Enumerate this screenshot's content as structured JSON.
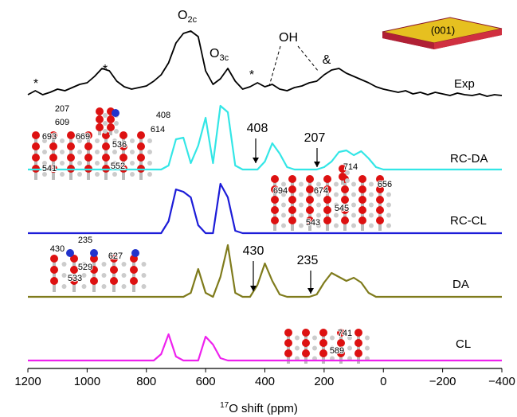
{
  "chart_data": {
    "type": "line",
    "x": [
      1200,
      1175,
      1150,
      1125,
      1100,
      1075,
      1050,
      1025,
      1000,
      975,
      950,
      925,
      900,
      875,
      850,
      825,
      800,
      775,
      750,
      725,
      700,
      675,
      650,
      625,
      600,
      575,
      550,
      525,
      500,
      475,
      450,
      425,
      400,
      375,
      350,
      325,
      300,
      275,
      250,
      225,
      200,
      175,
      150,
      125,
      100,
      75,
      50,
      25,
      0,
      -25,
      -50,
      -75,
      -100,
      -125,
      -150,
      -175,
      -200,
      -225,
      -250,
      -275,
      -300,
      -325,
      -350,
      -375,
      -400
    ],
    "series": [
      {
        "name": "Exp",
        "color": "#000000",
        "values": [
          5,
          10,
          5,
          8,
          12,
          10,
          14,
          18,
          20,
          28,
          38,
          35,
          22,
          15,
          12,
          14,
          16,
          22,
          30,
          45,
          70,
          82,
          85,
          78,
          35,
          18,
          25,
          38,
          22,
          12,
          15,
          20,
          15,
          18,
          12,
          10,
          14,
          16,
          20,
          22,
          30,
          36,
          38,
          32,
          28,
          24,
          20,
          15,
          12,
          10,
          8,
          10,
          6,
          8,
          5,
          8,
          6,
          4,
          7,
          5,
          4,
          6,
          3,
          5,
          4
        ]
      },
      {
        "name": "RC-DA",
        "color": "#33e6e6",
        "values": [
          0,
          0,
          0,
          0,
          0,
          0,
          0,
          0,
          0,
          0,
          0,
          0,
          0,
          0,
          0,
          0,
          0,
          0,
          0,
          5,
          38,
          40,
          8,
          30,
          65,
          8,
          80,
          72,
          5,
          0,
          0,
          0,
          10,
          33,
          20,
          3,
          0,
          0,
          0,
          0,
          3,
          10,
          22,
          24,
          18,
          23,
          14,
          3,
          0,
          0,
          0,
          0,
          0,
          0,
          0,
          0,
          0,
          0,
          0,
          0,
          0,
          0,
          0,
          0,
          0
        ]
      },
      {
        "name": "RC-CL",
        "color": "#1c1cd8",
        "values": [
          0,
          0,
          0,
          0,
          0,
          0,
          0,
          0,
          0,
          0,
          0,
          0,
          0,
          0,
          0,
          0,
          0,
          0,
          0,
          15,
          55,
          52,
          45,
          10,
          0,
          0,
          62,
          45,
          3,
          0,
          0,
          0,
          0,
          0,
          0,
          0,
          0,
          0,
          0,
          0,
          0,
          0,
          0,
          0,
          0,
          0,
          0,
          0,
          0,
          0,
          0,
          0,
          0,
          0,
          0,
          0,
          0,
          0,
          0,
          0,
          0,
          0,
          0,
          0,
          0
        ]
      },
      {
        "name": "DA",
        "color": "#7f7b1c",
        "values": [
          0,
          0,
          0,
          0,
          0,
          0,
          0,
          0,
          0,
          0,
          0,
          0,
          0,
          0,
          0,
          0,
          0,
          0,
          0,
          0,
          0,
          0,
          5,
          35,
          5,
          0,
          25,
          65,
          5,
          0,
          0,
          15,
          42,
          20,
          3,
          0,
          0,
          0,
          0,
          3,
          18,
          30,
          25,
          20,
          24,
          18,
          5,
          0,
          0,
          0,
          0,
          0,
          0,
          0,
          0,
          0,
          0,
          0,
          0,
          0,
          0,
          0,
          0,
          0,
          0
        ]
      },
      {
        "name": "CL",
        "color": "#ee22ee",
        "values": [
          0,
          0,
          0,
          0,
          0,
          0,
          0,
          0,
          0,
          0,
          0,
          0,
          0,
          0,
          0,
          0,
          0,
          0,
          8,
          33,
          5,
          0,
          0,
          0,
          30,
          20,
          3,
          0,
          0,
          0,
          0,
          0,
          0,
          0,
          0,
          0,
          0,
          0,
          0,
          0,
          0,
          0,
          0,
          0,
          0,
          0,
          0,
          0,
          0,
          0,
          0,
          0,
          0,
          0,
          0,
          0,
          0,
          0,
          0,
          0,
          0,
          0,
          0,
          0,
          0
        ]
      }
    ],
    "xlim": [
      1200,
      -400
    ],
    "xticks": [
      1200,
      1000,
      800,
      600,
      400,
      200,
      0,
      {
        "value": -200,
        "label": "−200"
      },
      {
        "value": -400,
        "label": "−400"
      }
    ],
    "xlabel": {
      "sup": "17",
      "text": "O shift (ppm)"
    },
    "peak_labels": [
      {
        "text": "O",
        "sub": "2c"
      },
      {
        "text": "O",
        "sub": "3c"
      },
      "OH",
      "&",
      "*",
      "*",
      "*"
    ],
    "arrow_labels": [
      "408",
      "207",
      "430",
      "235"
    ],
    "inset_labels": [
      "207",
      "408",
      "609",
      "614",
      "693",
      "669",
      "536",
      "541",
      "552",
      "714",
      "694",
      "674",
      "656",
      "545",
      "543",
      "430",
      "235",
      "627",
      "529",
      "533",
      "741",
      "589"
    ],
    "crystal_label": "(001)"
  }
}
